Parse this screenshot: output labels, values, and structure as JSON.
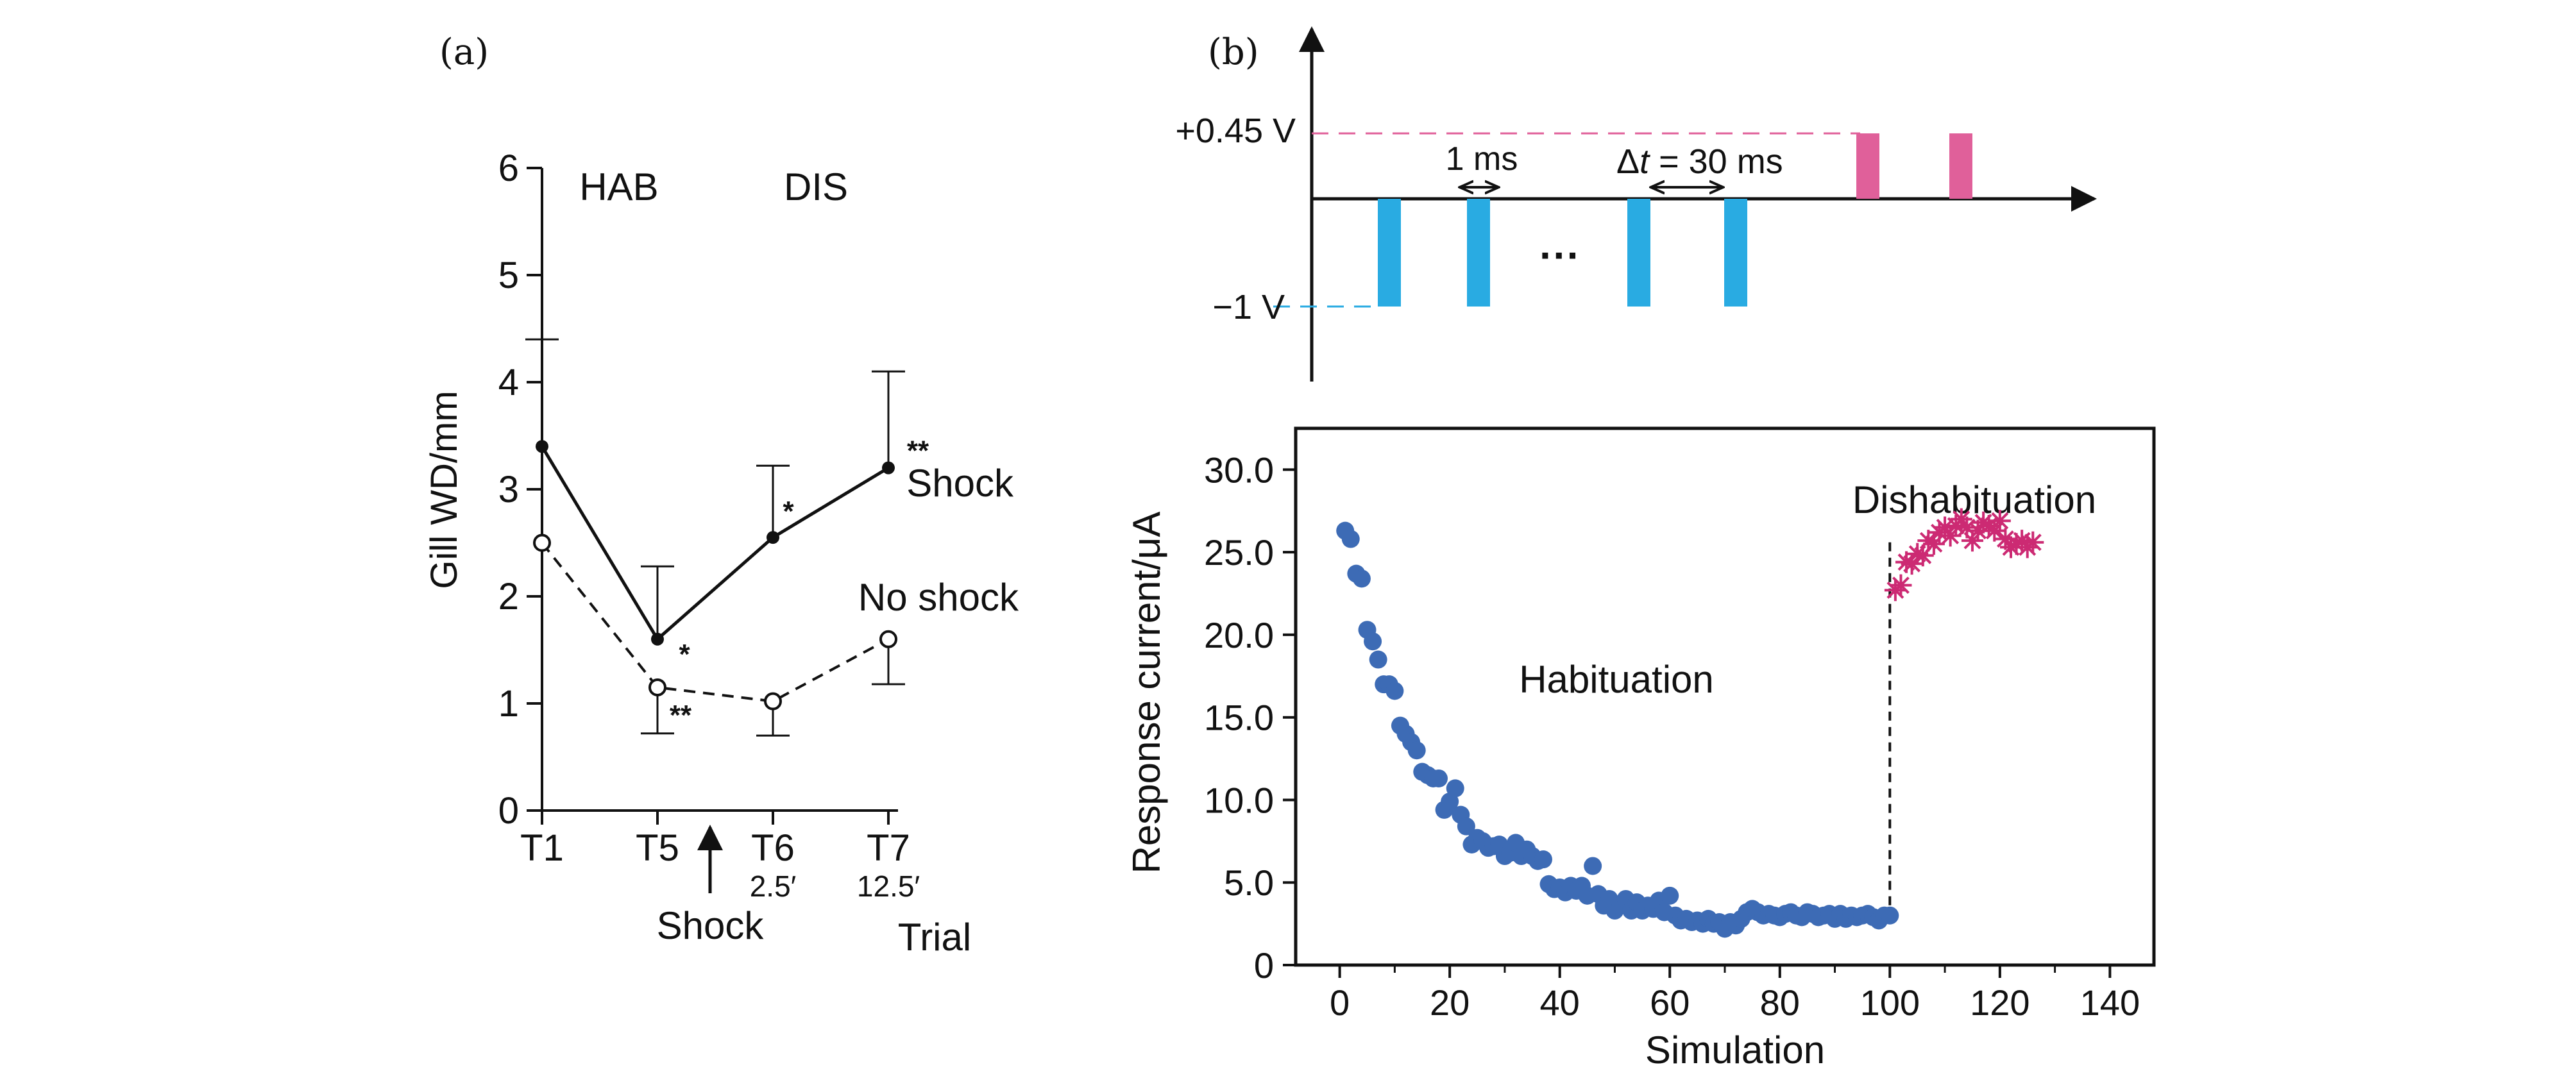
{
  "panels": {
    "a_label": "(a)",
    "b_label": "(b)"
  },
  "colors": {
    "ink": "#111111",
    "negative_pulse": "#29abe2",
    "positive_pulse": "#e0609a",
    "habituation_points": "#3d6bb5",
    "dishabituation_points": "#cc2a73"
  },
  "chart_data": [
    {
      "id": "a",
      "type": "line",
      "ylabel": "Gill WD/mm",
      "xlabel": "Trial",
      "ylim": [
        0,
        6
      ],
      "yticks": [
        "0",
        "1",
        "2",
        "3",
        "4",
        "5",
        "6"
      ],
      "categories": [
        "T1",
        "T5",
        "T6",
        "T7"
      ],
      "category_sublabels": [
        "",
        "",
        "2.5′",
        "12.5′"
      ],
      "annotations": {
        "hab": "HAB",
        "dis": "DIS",
        "shock_arrow": "Shock",
        "series_shock": "Shock",
        "series_no_shock": "No shock",
        "sig_star": "*",
        "sig_double": "**"
      },
      "series": [
        {
          "style": "solid-filled",
          "values": [
            3.4,
            1.6,
            2.55,
            3.2
          ],
          "error_upper": [
            4.4,
            2.28,
            3.22,
            4.1
          ],
          "significance": [
            "",
            "*",
            "*",
            "**"
          ]
        },
        {
          "style": "dashed-open",
          "values": [
            2.5,
            1.15,
            1.02,
            1.6
          ],
          "error_lower": [
            null,
            0.72,
            0.7,
            1.18
          ],
          "significance": [
            "",
            "**",
            "",
            ""
          ]
        }
      ]
    },
    {
      "id": "b_pulses",
      "type": "other",
      "levels": {
        "positive": "+0.45 V",
        "negative": "−1 V"
      },
      "width_label": "1 ms",
      "interval_label_prefix": "Δ",
      "interval_label_var": "t",
      "interval_label_suffix": " = 30 ms",
      "ellipsis": "···"
    },
    {
      "id": "b_scatter",
      "type": "scatter",
      "xlabel": "Simulation",
      "ylabel": "Response current/μA",
      "xlim": [
        -8,
        148
      ],
      "ylim": [
        0,
        32.5
      ],
      "xticks": [
        "0",
        "20",
        "40",
        "60",
        "80",
        "100",
        "120",
        "140"
      ],
      "yticks": [
        "0",
        "5.0",
        "10.0",
        "15.0",
        "20.0",
        "25.0",
        "30.0"
      ],
      "annotations": {
        "habituation": "Habituation",
        "dishabituation": "Dishabituation"
      },
      "divider_x": 100,
      "series": [
        {
          "marker": "circle",
          "x": [
            1,
            2,
            3,
            4,
            5,
            6,
            7,
            8,
            9,
            10,
            11,
            12,
            13,
            14,
            15,
            16,
            17,
            18,
            19,
            20,
            21,
            22,
            23,
            24,
            25,
            26,
            27,
            28,
            29,
            30,
            31,
            32,
            33,
            34,
            35,
            36,
            37,
            38,
            39,
            40,
            41,
            42,
            43,
            44,
            45,
            46,
            47,
            48,
            49,
            50,
            51,
            52,
            53,
            54,
            55,
            56,
            57,
            58,
            59,
            60,
            61,
            62,
            63,
            64,
            65,
            66,
            67,
            68,
            69,
            70,
            71,
            72,
            73,
            74,
            75,
            76,
            77,
            78,
            79,
            80,
            81,
            82,
            83,
            84,
            85,
            86,
            87,
            88,
            89,
            90,
            91,
            92,
            93,
            94,
            95,
            96,
            97,
            98,
            99,
            100
          ],
          "y": [
            26.3,
            25.8,
            23.7,
            23.4,
            20.3,
            19.6,
            18.5,
            17.0,
            17.0,
            16.6,
            14.5,
            14.0,
            13.5,
            13.0,
            11.7,
            11.5,
            11.3,
            11.3,
            9.4,
            9.9,
            10.7,
            9.1,
            8.4,
            7.3,
            7.7,
            7.5,
            7.1,
            7.2,
            7.3,
            6.6,
            6.8,
            7.4,
            6.6,
            7.0,
            6.6,
            6.3,
            6.4,
            4.9,
            4.6,
            4.7,
            4.4,
            4.8,
            4.5,
            4.8,
            4.2,
            6.0,
            4.3,
            3.6,
            4.0,
            3.3,
            3.6,
            4.0,
            3.3,
            3.8,
            3.3,
            3.6,
            3.4,
            3.9,
            3.2,
            4.2,
            3.0,
            2.7,
            2.8,
            2.6,
            2.7,
            2.5,
            2.8,
            2.5,
            2.6,
            2.2,
            2.6,
            2.4,
            2.8,
            3.2,
            3.4,
            3.2,
            3.0,
            3.1,
            3.0,
            2.9,
            3.1,
            3.2,
            3.0,
            2.9,
            3.2,
            3.1,
            2.9,
            3.0,
            3.1,
            2.8,
            3.1,
            2.8,
            3.0,
            2.9,
            3.0,
            3.1,
            2.9,
            2.7,
            3.0,
            3.0
          ]
        },
        {
          "marker": "asterisk",
          "x": [
            101,
            102,
            103,
            104,
            105,
            106,
            107,
            108,
            109,
            110,
            111,
            112,
            113,
            114,
            115,
            116,
            117,
            118,
            119,
            120,
            121,
            122,
            123,
            124,
            125,
            126
          ],
          "y": [
            22.7,
            23.0,
            24.4,
            24.3,
            24.9,
            24.8,
            25.7,
            25.5,
            26.2,
            26.5,
            26.0,
            26.6,
            27.0,
            26.5,
            25.7,
            26.3,
            26.8,
            26.6,
            26.3,
            26.9,
            25.8,
            25.3,
            25.5,
            25.7,
            25.3,
            25.6
          ]
        }
      ]
    }
  ]
}
